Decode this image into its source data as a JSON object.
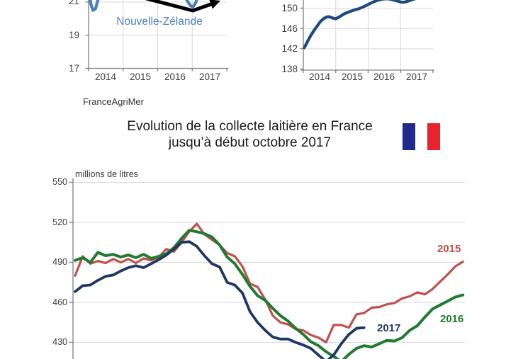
{
  "source": "FranceAgriMer",
  "header": {
    "title_line1": "Evolution de la collecte laitière en France",
    "title_line2": "jusqu’à début octobre 2017",
    "flag": {
      "name": "drapeau-france",
      "blue": "#212a8c",
      "red": "#e8232e"
    }
  },
  "colors": {
    "grid": "#d9d9d9",
    "axis": "#808080",
    "tick_text": "#3f3f3f"
  },
  "chart_data": [
    {
      "id": "nouvelle-zelande",
      "type": "line",
      "annotation": "Nouvelle-Zélande",
      "annotation_color": "#4f81bd",
      "cropped_top": true,
      "xticks": [
        "2014",
        "2015",
        "2016",
        "2017"
      ],
      "yticks": [
        21,
        19,
        17
      ],
      "arrow_annotation": "upward-trend-arrow",
      "series": [
        {
          "name": "Nouvelle-Zélande",
          "color": "#4a7eb8",
          "points": [
            [
              2014.0,
              21.8
            ],
            [
              2014.07,
              20.85
            ],
            [
              2014.13,
              20.5
            ],
            [
              2014.2,
              20.6
            ],
            [
              2014.28,
              21.2
            ],
            [
              2014.38,
              22.0
            ],
            [
              2014.6,
              22.6
            ],
            [
              2015.0,
              22.8
            ],
            [
              2015.5,
              22.6
            ],
            [
              2016.0,
              22.2
            ],
            [
              2016.4,
              21.85
            ],
            [
              2016.7,
              21.55
            ],
            [
              2016.85,
              21.1
            ],
            [
              2016.95,
              20.78
            ],
            [
              2017.02,
              20.7
            ],
            [
              2017.1,
              20.95
            ],
            [
              2017.2,
              21.6
            ],
            [
              2017.35,
              22.2
            ]
          ]
        }
      ]
    },
    {
      "id": "collecte-droite",
      "type": "line",
      "cropped_top": true,
      "xticks": [
        "2014",
        "2015",
        "2016",
        "2017"
      ],
      "yticks": [
        150,
        146,
        142,
        138
      ],
      "series": [
        {
          "name": "",
          "color": "#1f4a7d",
          "points": [
            [
              2014.03,
              142.2
            ],
            [
              2014.12,
              143.3
            ],
            [
              2014.22,
              144.5
            ],
            [
              2014.32,
              145.5
            ],
            [
              2014.42,
              146.4
            ],
            [
              2014.52,
              147.3
            ],
            [
              2014.62,
              147.9
            ],
            [
              2014.72,
              148.25
            ],
            [
              2014.8,
              148.3
            ],
            [
              2014.9,
              148.05
            ],
            [
              2015.0,
              147.9
            ],
            [
              2015.12,
              148.3
            ],
            [
              2015.27,
              148.9
            ],
            [
              2015.42,
              149.3
            ],
            [
              2015.57,
              149.6
            ],
            [
              2015.72,
              149.9
            ],
            [
              2015.87,
              150.3
            ],
            [
              2016.0,
              150.7
            ],
            [
              2016.15,
              151.2
            ],
            [
              2016.3,
              151.55
            ],
            [
              2016.45,
              151.8
            ],
            [
              2016.6,
              151.85
            ],
            [
              2016.75,
              151.65
            ],
            [
              2016.9,
              151.4
            ],
            [
              2017.0,
              151.2
            ],
            [
              2017.1,
              151.15
            ],
            [
              2017.22,
              151.35
            ],
            [
              2017.35,
              151.65
            ],
            [
              2017.5,
              151.95
            ],
            [
              2017.65,
              152.3
            ]
          ]
        }
      ]
    },
    {
      "id": "collecte-france",
      "type": "line",
      "title": "Evolution de la collecte laitière en France jusqu’à début octobre 2017",
      "ylabel": "millions de litres",
      "yticks": [
        550,
        520,
        490,
        460,
        430
      ],
      "x_note": "valeurs hebdomadaires, axe x rogné en bas",
      "series": [
        {
          "name": "2015",
          "color": "#c0504d",
          "values": [
            480,
            494.5,
            489,
            491,
            489.5,
            492.5,
            490,
            492.5,
            489.5,
            493,
            491.5,
            494,
            500,
            498,
            505,
            513,
            519,
            511,
            507,
            503,
            497,
            494.5,
            487,
            474,
            471.5,
            462,
            450,
            445,
            443.5,
            440,
            439,
            435.5,
            433.5,
            430,
            443,
            443,
            441,
            451,
            452,
            456,
            456.5,
            458.5,
            459.5,
            463,
            464.5,
            467.5,
            466,
            470,
            475.5,
            481,
            487,
            490.5
          ]
        },
        {
          "name": "2016",
          "color": "#1e7b30",
          "values": [
            491.5,
            493.5,
            490,
            497.5,
            495,
            496,
            494,
            495.5,
            493.5,
            496,
            493,
            494.5,
            496.5,
            501,
            508,
            514,
            513,
            511.5,
            509,
            503,
            494,
            489,
            481,
            472,
            465,
            461.5,
            455.5,
            450,
            446,
            440.5,
            436,
            430.5,
            427.5,
            423,
            419.5,
            415.5,
            421,
            425.5,
            427.5,
            426.5,
            429,
            431.5,
            431,
            433.5,
            439,
            442.5,
            449,
            455,
            458,
            461,
            464,
            465.5
          ]
        },
        {
          "name": "2017",
          "color": "#1f3864",
          "values": [
            468,
            472.5,
            473,
            476.5,
            479.5,
            480.5,
            483.5,
            486,
            487.5,
            486,
            489,
            492,
            495.5,
            500,
            505,
            505.5,
            502,
            495,
            489,
            486.5,
            475,
            473,
            467,
            453,
            445,
            439,
            434,
            432.5,
            432.5,
            430,
            428,
            425.5,
            420.5,
            415.5,
            420.5,
            429,
            436,
            440.5,
            441
          ]
        }
      ]
    }
  ]
}
